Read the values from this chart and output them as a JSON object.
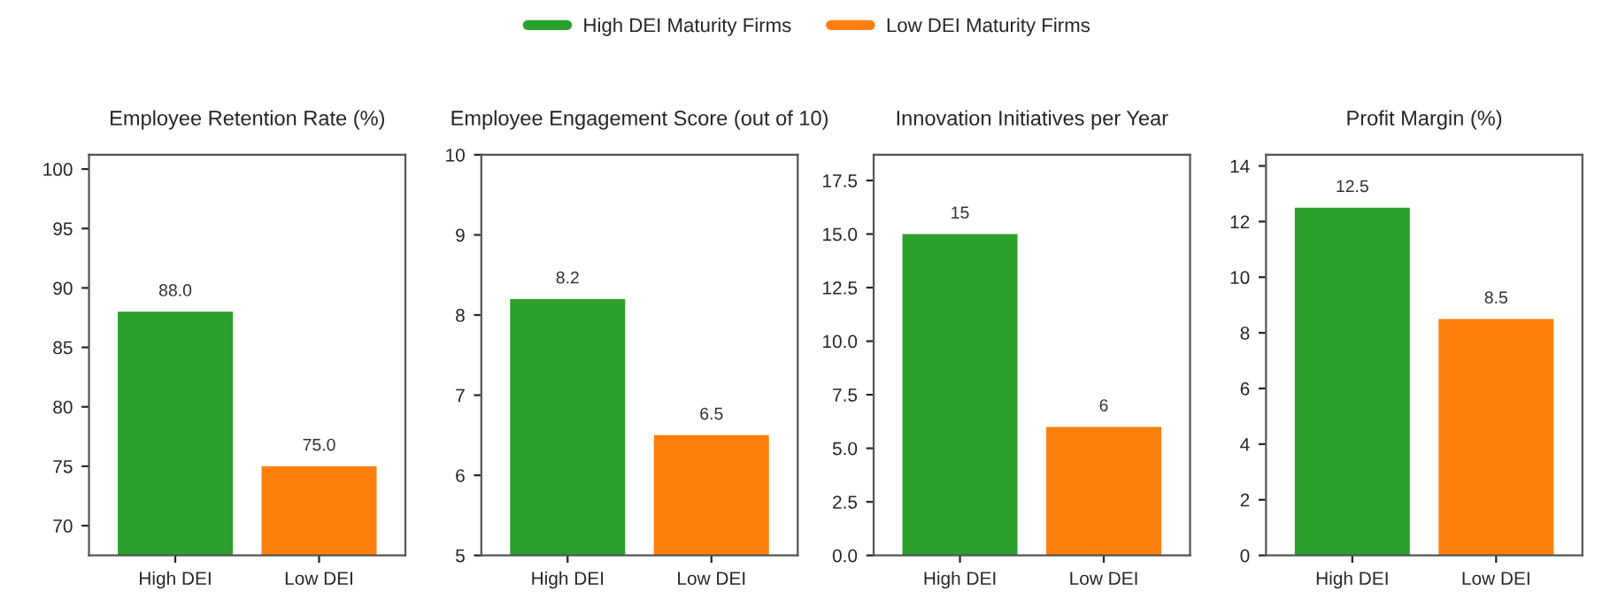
{
  "chart_data": [
    {
      "type": "bar",
      "title": "Employee Retention Rate (%)",
      "categories": [
        "High DEI",
        "Low DEI"
      ],
      "ylim": [
        67.5,
        101.2
      ],
      "yticks": [
        70,
        75,
        80,
        85,
        90,
        95,
        100
      ],
      "legend": "top",
      "series": [
        {
          "name": "High DEI Maturity Firms",
          "color": "#2ca02c",
          "values": [
            88.0,
            null
          ],
          "value_labels": [
            "88.0",
            null
          ]
        },
        {
          "name": "Low DEI Maturity Firms",
          "color": "#ff7f0e",
          "values": [
            null,
            75.0
          ],
          "value_labels": [
            null,
            "75.0"
          ]
        }
      ]
    },
    {
      "type": "bar",
      "title": "Employee Engagement Score (out of 10)",
      "categories": [
        "High DEI",
        "Low DEI"
      ],
      "ylim": [
        5,
        10
      ],
      "yticks": [
        5,
        6,
        7,
        8,
        9,
        10
      ],
      "data_labels": true,
      "series": [
        {
          "color": "#2ca02c",
          "values": [
            8.2,
            null
          ]
        },
        {
          "color": "#ff7f0e",
          "values": [
            null,
            6.5
          ]
        }
      ]
    },
    {
      "type": "bar",
      "title": "Innovation Initiatives per Year",
      "categories": [
        "High DEI",
        "Low DEI"
      ],
      "ylim": [
        0,
        18.7
      ],
      "yticks": [
        {
          "value": 0,
          "label": "0.0"
        },
        2.5,
        {
          "value": 5,
          "label": "5.0"
        },
        7.5,
        {
          "value": 10,
          "label": "10.0"
        },
        12.5,
        {
          "value": 15,
          "label": "15.0"
        },
        17.5
      ],
      "data_labels": true,
      "series": [
        {
          "color": "#2ca02c",
          "values": [
            15,
            null
          ]
        },
        {
          "color": "#ff7f0e",
          "values": [
            null,
            6
          ]
        }
      ]
    },
    {
      "type": "bar",
      "title": "Profit Margin (%)",
      "categories": [
        "High DEI",
        "Low DEI"
      ],
      "ylim": [
        0,
        14.4
      ],
      "yticks": [
        0,
        2,
        4,
        6,
        8,
        10,
        12,
        14
      ],
      "data_labels": true,
      "series": [
        {
          "color": "#2ca02c",
          "values": [
            12.5,
            null
          ]
        },
        {
          "color": "#ff7f0e",
          "values": [
            null,
            8.5
          ]
        }
      ]
    }
  ]
}
